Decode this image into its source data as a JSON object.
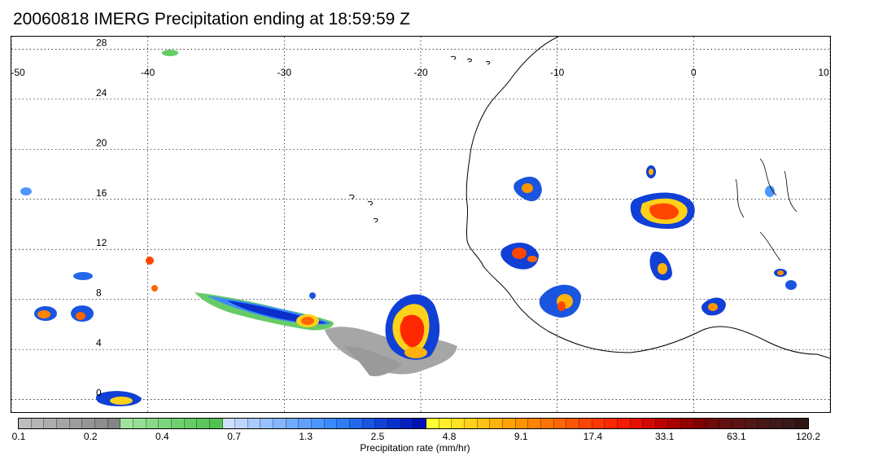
{
  "title": "20060818 IMERG Precipitation ending at 18:59:59 Z",
  "map": {
    "lon_range": [
      -50,
      10
    ],
    "lat_range": [
      -1,
      29
    ],
    "lon_ticks": [
      "-50",
      "-40",
      "-30",
      "-20",
      "-10",
      "0",
      "10"
    ],
    "lat_ticks": [
      "28",
      "24",
      "20",
      "16",
      "12",
      "8",
      "4",
      "0"
    ],
    "gridlines": "dotted"
  },
  "colorbar": {
    "label": "Precipitation rate (mm/hr)",
    "tick_labels": [
      "0.1",
      "0.2",
      "0.4",
      "0.7",
      "1.3",
      "2.5",
      "4.8",
      "9.1",
      "17.4",
      "33.1",
      "63.1",
      "120.2"
    ],
    "colors": [
      "#bdbdbd",
      "#b5b5b5",
      "#adadad",
      "#a5a5a5",
      "#9d9d9d",
      "#959595",
      "#8d8d8d",
      "#858585",
      "#9fe39f",
      "#93df93",
      "#87db87",
      "#7bd77b",
      "#70d070",
      "#66cc66",
      "#5cc75c",
      "#52c252",
      "#cfe0ff",
      "#bcd5ff",
      "#a9cbff",
      "#96c0ff",
      "#84b6ff",
      "#71abff",
      "#5fa0ff",
      "#4c96ff",
      "#3a8bff",
      "#2f7cf5",
      "#2468eb",
      "#1a55e0",
      "#1040d6",
      "#0a30cc",
      "#0520c0",
      "#0010b3",
      "#ffff33",
      "#fff02a",
      "#ffe022",
      "#ffd11a",
      "#ffc112",
      "#ffb20a",
      "#ffa203",
      "#ff9300",
      "#ff8400",
      "#ff7400",
      "#ff6500",
      "#ff5600",
      "#ff4600",
      "#ff3700",
      "#ff2800",
      "#f51b00",
      "#e31000",
      "#d00800",
      "#bd0000",
      "#a80000",
      "#930000",
      "#7e0000",
      "#6e0a0a",
      "#631010",
      "#5a1414",
      "#511616",
      "#481818",
      "#401a1a",
      "#381818",
      "#301515"
    ]
  }
}
